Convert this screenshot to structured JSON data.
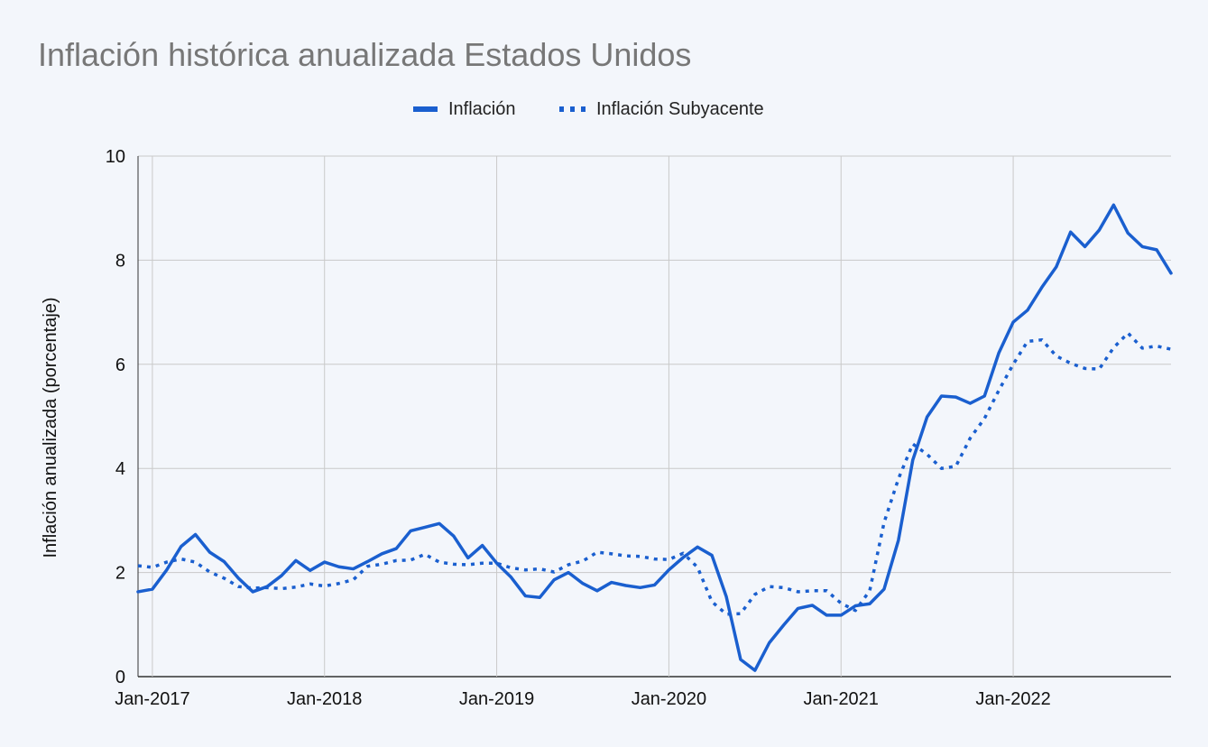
{
  "chart_data": {
    "type": "line",
    "title": "Inflación histórica anualizada Estados Unidos",
    "xlabel": "",
    "ylabel": "Inflación anualizada (porcentaje)",
    "ylim": [
      0,
      10
    ],
    "yticks": [
      "0",
      "2",
      "4",
      "6",
      "8",
      "10"
    ],
    "xtick_labels": [
      "Jan-2017",
      "Jan-2018",
      "Jan-2019",
      "Jan-2020",
      "Jan-2021",
      "Jan-2022"
    ],
    "x_start": "Dec-2016",
    "x_end": "Sep-2022",
    "grid": true,
    "legend_position": "top-center",
    "series": [
      {
        "name": "Inflación",
        "style": "solid",
        "color": "#1a5fcf",
        "values": [
          1.63,
          1.68,
          2.05,
          2.5,
          2.73,
          2.39,
          2.21,
          1.89,
          1.63,
          1.73,
          1.94,
          2.23,
          2.04,
          2.2,
          2.11,
          2.07,
          2.21,
          2.36,
          2.46,
          2.8,
          2.87,
          2.94,
          2.7,
          2.28,
          2.52,
          2.18,
          1.91,
          1.55,
          1.52,
          1.86,
          2.0,
          1.79,
          1.65,
          1.81,
          1.75,
          1.71,
          1.76,
          2.05,
          2.29,
          2.49,
          2.33,
          1.54,
          0.33,
          0.12,
          0.65,
          0.99,
          1.31,
          1.37,
          1.18,
          1.18,
          1.36,
          1.4,
          1.68,
          2.62,
          4.16,
          4.99,
          5.39,
          5.37,
          5.25,
          5.39,
          6.22,
          6.81,
          7.04,
          7.48,
          7.87,
          8.54,
          8.26,
          8.58,
          9.06,
          8.52,
          8.26,
          8.2,
          7.75
        ]
      },
      {
        "name": "Inflación Subyacente",
        "style": "dotted",
        "color": "#1a5fcf",
        "values": [
          2.13,
          2.1,
          2.2,
          2.26,
          2.2,
          2.01,
          1.89,
          1.73,
          1.7,
          1.71,
          1.69,
          1.72,
          1.78,
          1.74,
          1.79,
          1.86,
          2.12,
          2.16,
          2.23,
          2.24,
          2.35,
          2.2,
          2.16,
          2.15,
          2.18,
          2.18,
          2.09,
          2.05,
          2.07,
          2.01,
          2.15,
          2.22,
          2.39,
          2.36,
          2.32,
          2.31,
          2.26,
          2.25,
          2.37,
          2.1,
          1.44,
          1.2,
          1.21,
          1.58,
          1.73,
          1.71,
          1.63,
          1.65,
          1.65,
          1.41,
          1.27,
          1.65,
          2.96,
          3.8,
          4.47,
          4.27,
          4.0,
          4.04,
          4.58,
          4.96,
          5.5,
          6.0,
          6.44,
          6.47,
          6.16,
          6.02,
          5.92,
          5.91,
          6.32,
          6.6,
          6.31,
          6.35,
          6.29
        ]
      }
    ]
  }
}
